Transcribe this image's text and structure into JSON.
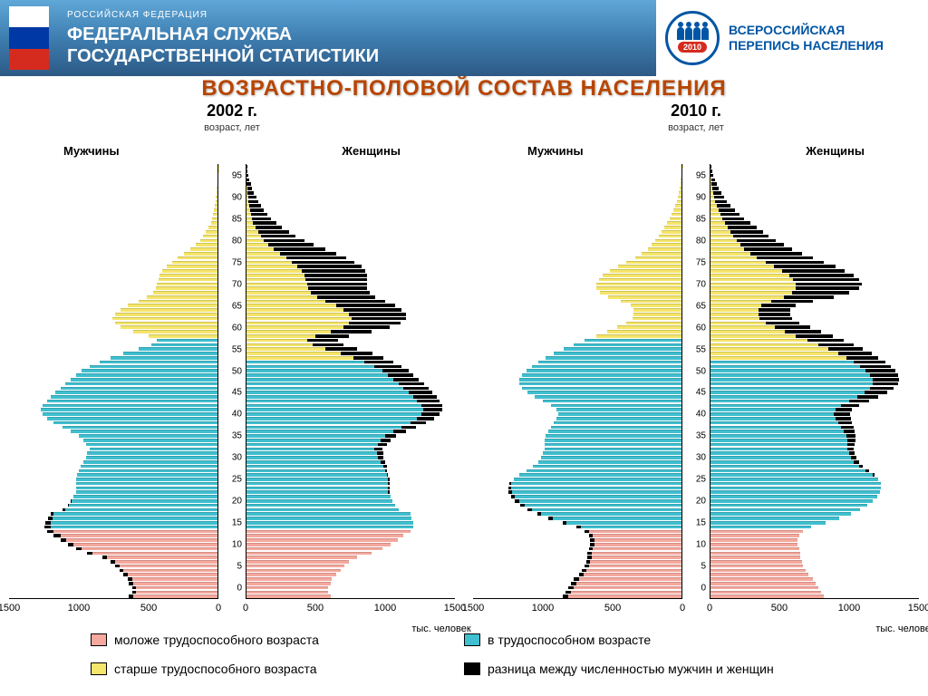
{
  "header": {
    "country": "РОССИЙСКАЯ ФЕДЕРАЦИЯ",
    "agency_line1": "ФЕДЕРАЛЬНАЯ СЛУЖБА",
    "agency_line2": "ГОСУДАРСТВЕННОЙ СТАТИСТИКИ",
    "census_line1": "ВСЕРОССИЙСКАЯ",
    "census_line2": "ПЕРЕПИСЬ НАСЕЛЕНИЯ",
    "census_year": "2010"
  },
  "title": "ВОЗРАСТНО-ПОЛОВОЙ СОСТАВ НАСЕЛЕНИЯ",
  "colors": {
    "young": "#f5a89e",
    "working": "#3fbfcf",
    "old": "#f5e56a",
    "diff": "#000000",
    "axis": "#000000",
    "title": "#b84500",
    "header_gradient_top": "#5fa8d8",
    "header_gradient_bot": "#2d5a85",
    "census_blue": "#0055a4",
    "census_red": "#d52b1e"
  },
  "axis": {
    "age_label": "возраст, лет",
    "men_label": "Мужчины",
    "women_label": "Женщины",
    "x_unit": "тыс. человек",
    "x_max": 1500,
    "x_ticks": [
      0,
      500,
      1000,
      1500
    ],
    "age_ticks": [
      0,
      5,
      10,
      15,
      20,
      25,
      30,
      35,
      40,
      45,
      50,
      55,
      60,
      65,
      70,
      75,
      80,
      85,
      90,
      95
    ],
    "age_max": 100,
    "young_threshold": 16,
    "old_threshold_male": 60,
    "old_threshold_female": 55
  },
  "legend": {
    "young": "моложе трудоспособного возраста",
    "working": "в трудоспособном возрасте",
    "old": "старше трудоспособного возраста",
    "diff": "разница между численностью мужчин и женщин"
  },
  "pyramids": [
    {
      "year": "2002 г.",
      "ages": [
        0,
        1,
        2,
        3,
        4,
        5,
        6,
        7,
        8,
        9,
        10,
        11,
        12,
        13,
        14,
        15,
        16,
        17,
        18,
        19,
        20,
        21,
        22,
        23,
        24,
        25,
        26,
        27,
        28,
        29,
        30,
        31,
        32,
        33,
        34,
        35,
        36,
        37,
        38,
        39,
        40,
        41,
        42,
        43,
        44,
        45,
        46,
        47,
        48,
        49,
        50,
        51,
        52,
        53,
        54,
        55,
        56,
        57,
        58,
        59,
        60,
        61,
        62,
        63,
        64,
        65,
        66,
        67,
        68,
        69,
        70,
        71,
        72,
        73,
        74,
        75,
        76,
        77,
        78,
        79,
        80,
        81,
        82,
        83,
        84,
        85,
        86,
        87,
        88,
        89,
        90,
        91,
        92,
        93,
        94,
        95,
        96,
        97,
        98,
        99
      ],
      "men": [
        640,
        620,
        620,
        640,
        650,
        680,
        710,
        740,
        770,
        830,
        940,
        1020,
        1080,
        1130,
        1180,
        1230,
        1250,
        1240,
        1220,
        1200,
        1120,
        1080,
        1060,
        1040,
        1020,
        1020,
        1020,
        1020,
        1010,
        1000,
        990,
        970,
        950,
        940,
        920,
        950,
        970,
        1000,
        1060,
        1120,
        1180,
        1230,
        1260,
        1270,
        1260,
        1230,
        1200,
        1170,
        1130,
        1100,
        1060,
        1020,
        980,
        920,
        850,
        770,
        680,
        570,
        480,
        440,
        500,
        610,
        700,
        740,
        760,
        740,
        700,
        650,
        570,
        510,
        470,
        450,
        440,
        430,
        420,
        400,
        370,
        330,
        290,
        250,
        200,
        160,
        130,
        110,
        90,
        70,
        55,
        45,
        38,
        32,
        26,
        21,
        17,
        13,
        10,
        8,
        6,
        4,
        3,
        2
      ],
      "women": [
        610,
        590,
        590,
        610,
        620,
        650,
        680,
        710,
        740,
        800,
        900,
        980,
        1040,
        1090,
        1130,
        1180,
        1200,
        1200,
        1190,
        1180,
        1100,
        1070,
        1050,
        1040,
        1030,
        1030,
        1030,
        1030,
        1020,
        1015,
        1010,
        1000,
        990,
        985,
        980,
        1010,
        1040,
        1080,
        1150,
        1220,
        1290,
        1350,
        1390,
        1410,
        1410,
        1390,
        1370,
        1340,
        1310,
        1280,
        1240,
        1200,
        1170,
        1120,
        1060,
        990,
        910,
        800,
        700,
        660,
        740,
        900,
        1030,
        1110,
        1150,
        1150,
        1120,
        1070,
        1000,
        930,
        890,
        870,
        870,
        870,
        870,
        860,
        830,
        780,
        720,
        650,
        570,
        490,
        420,
        360,
        310,
        260,
        220,
        185,
        155,
        130,
        108,
        88,
        72,
        58,
        46,
        36,
        28,
        22,
        16,
        11
      ],
      "diff": [
        -30,
        -30,
        -30,
        -30,
        -30,
        -30,
        -30,
        -30,
        -30,
        -30,
        -40,
        -40,
        -40,
        -40,
        -50,
        -50,
        -50,
        -40,
        -30,
        -20,
        -20,
        -10,
        -10,
        0,
        10,
        10,
        10,
        10,
        10,
        15,
        20,
        30,
        40,
        45,
        60,
        60,
        70,
        80,
        90,
        100,
        110,
        120,
        130,
        140,
        150,
        160,
        170,
        170,
        180,
        180,
        180,
        180,
        190,
        200,
        210,
        220,
        230,
        230,
        220,
        220,
        240,
        290,
        330,
        370,
        390,
        410,
        420,
        420,
        430,
        420,
        420,
        420,
        430,
        440,
        450,
        460,
        460,
        450,
        430,
        400,
        370,
        330,
        290,
        250,
        220,
        190,
        165,
        140,
        120,
        100,
        85,
        70,
        58,
        47,
        38,
        30,
        23,
        17,
        12,
        8
      ]
    },
    {
      "year": "2010 г.",
      "ages": [
        0,
        1,
        2,
        3,
        4,
        5,
        6,
        7,
        8,
        9,
        10,
        11,
        12,
        13,
        14,
        15,
        16,
        17,
        18,
        19,
        20,
        21,
        22,
        23,
        24,
        25,
        26,
        27,
        28,
        29,
        30,
        31,
        32,
        33,
        34,
        35,
        36,
        37,
        38,
        39,
        40,
        41,
        42,
        43,
        44,
        45,
        46,
        47,
        48,
        49,
        50,
        51,
        52,
        53,
        54,
        55,
        56,
        57,
        58,
        59,
        60,
        61,
        62,
        63,
        64,
        65,
        66,
        67,
        68,
        69,
        70,
        71,
        72,
        73,
        74,
        75,
        76,
        77,
        78,
        79,
        80,
        81,
        82,
        83,
        84,
        85,
        86,
        87,
        88,
        89,
        90,
        91,
        92,
        93,
        94,
        95,
        96,
        97,
        98,
        99
      ],
      "men": [
        860,
        840,
        820,
        800,
        780,
        740,
        720,
        700,
        690,
        680,
        680,
        670,
        660,
        660,
        670,
        700,
        760,
        860,
        960,
        1040,
        1110,
        1160,
        1200,
        1230,
        1250,
        1250,
        1240,
        1210,
        1170,
        1120,
        1070,
        1030,
        1010,
        1000,
        990,
        990,
        990,
        980,
        960,
        940,
        920,
        900,
        890,
        900,
        940,
        1000,
        1060,
        1110,
        1150,
        1170,
        1170,
        1150,
        1120,
        1080,
        1030,
        980,
        920,
        850,
        780,
        700,
        620,
        540,
        470,
        400,
        360,
        350,
        350,
        370,
        440,
        530,
        590,
        620,
        620,
        600,
        570,
        520,
        460,
        400,
        340,
        290,
        250,
        220,
        195,
        170,
        150,
        130,
        110,
        92,
        76,
        62,
        50,
        40,
        32,
        25,
        19,
        14,
        10,
        7,
        5,
        3
      ],
      "women": [
        820,
        800,
        780,
        760,
        740,
        710,
        690,
        670,
        660,
        650,
        650,
        640,
        630,
        630,
        645,
        670,
        730,
        830,
        930,
        1010,
        1080,
        1130,
        1170,
        1200,
        1220,
        1230,
        1230,
        1210,
        1180,
        1140,
        1100,
        1070,
        1050,
        1040,
        1035,
        1040,
        1045,
        1045,
        1040,
        1030,
        1020,
        1010,
        1005,
        1020,
        1070,
        1140,
        1210,
        1270,
        1320,
        1350,
        1360,
        1350,
        1330,
        1300,
        1260,
        1210,
        1160,
        1100,
        1030,
        960,
        880,
        800,
        720,
        640,
        590,
        580,
        580,
        620,
        740,
        890,
        1000,
        1070,
        1090,
        1070,
        1030,
        970,
        900,
        820,
        740,
        660,
        590,
        530,
        475,
        425,
        380,
        335,
        290,
        250,
        215,
        180,
        150,
        125,
        102,
        82,
        65,
        51,
        39,
        29,
        21,
        14
      ],
      "diff": [
        -40,
        -40,
        -40,
        -40,
        -40,
        -30,
        -30,
        -30,
        -30,
        -30,
        -30,
        -30,
        -30,
        -30,
        -25,
        -30,
        -30,
        -30,
        -30,
        -30,
        -30,
        -30,
        -30,
        -30,
        -30,
        -20,
        -10,
        0,
        10,
        20,
        30,
        40,
        40,
        40,
        45,
        50,
        55,
        65,
        80,
        90,
        100,
        110,
        115,
        120,
        130,
        140,
        150,
        160,
        170,
        180,
        190,
        200,
        210,
        220,
        230,
        230,
        240,
        250,
        250,
        260,
        260,
        260,
        250,
        240,
        230,
        230,
        230,
        250,
        300,
        360,
        410,
        450,
        470,
        470,
        460,
        450,
        440,
        420,
        400,
        370,
        340,
        310,
        280,
        255,
        230,
        205,
        180,
        158,
        139,
        118,
        100,
        85,
        70,
        57,
        46,
        37,
        29,
        22,
        16,
        11
      ]
    }
  ]
}
